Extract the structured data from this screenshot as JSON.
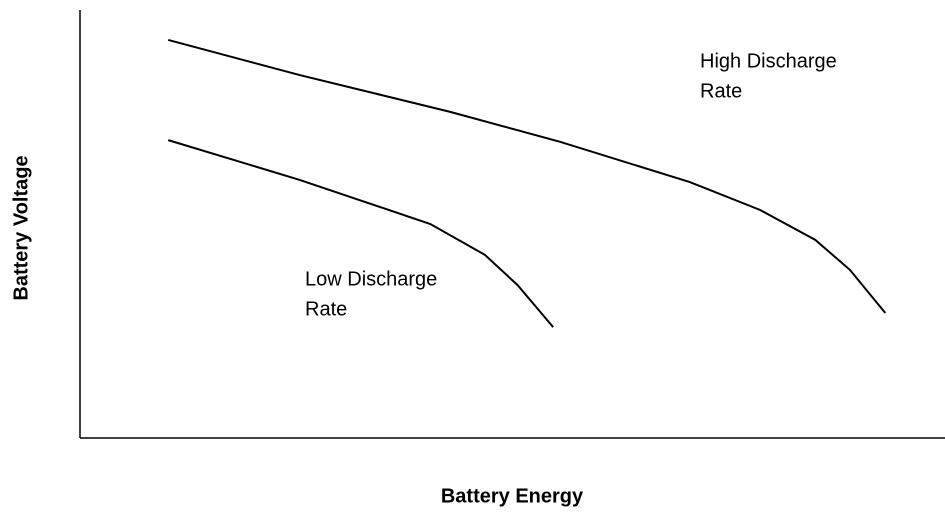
{
  "chart_data": {
    "type": "line",
    "xlabel": "Battery Energy",
    "ylabel": "Battery Voltage",
    "xlim": [
      0,
      100
    ],
    "ylim": [
      0,
      100
    ],
    "series": [
      {
        "label": [
          "High Discharge",
          "Rate"
        ],
        "color": "#000000",
        "x": [
          10.2,
          25.4,
          42.8,
          55.5,
          70.5,
          78.6,
          85.0,
          89.0,
          93.1
        ],
        "values": [
          93.0,
          84.8,
          76.2,
          69.2,
          59.8,
          53.3,
          46.3,
          39.3,
          29.2
        ]
      },
      {
        "label": [
          "Low Discharge",
          "Rate"
        ],
        "color": "#000000",
        "x": [
          10.2,
          25.4,
          40.5,
          46.8,
          50.6,
          54.7
        ],
        "values": [
          69.6,
          60.3,
          50.0,
          42.8,
          35.7,
          25.9
        ]
      }
    ]
  }
}
